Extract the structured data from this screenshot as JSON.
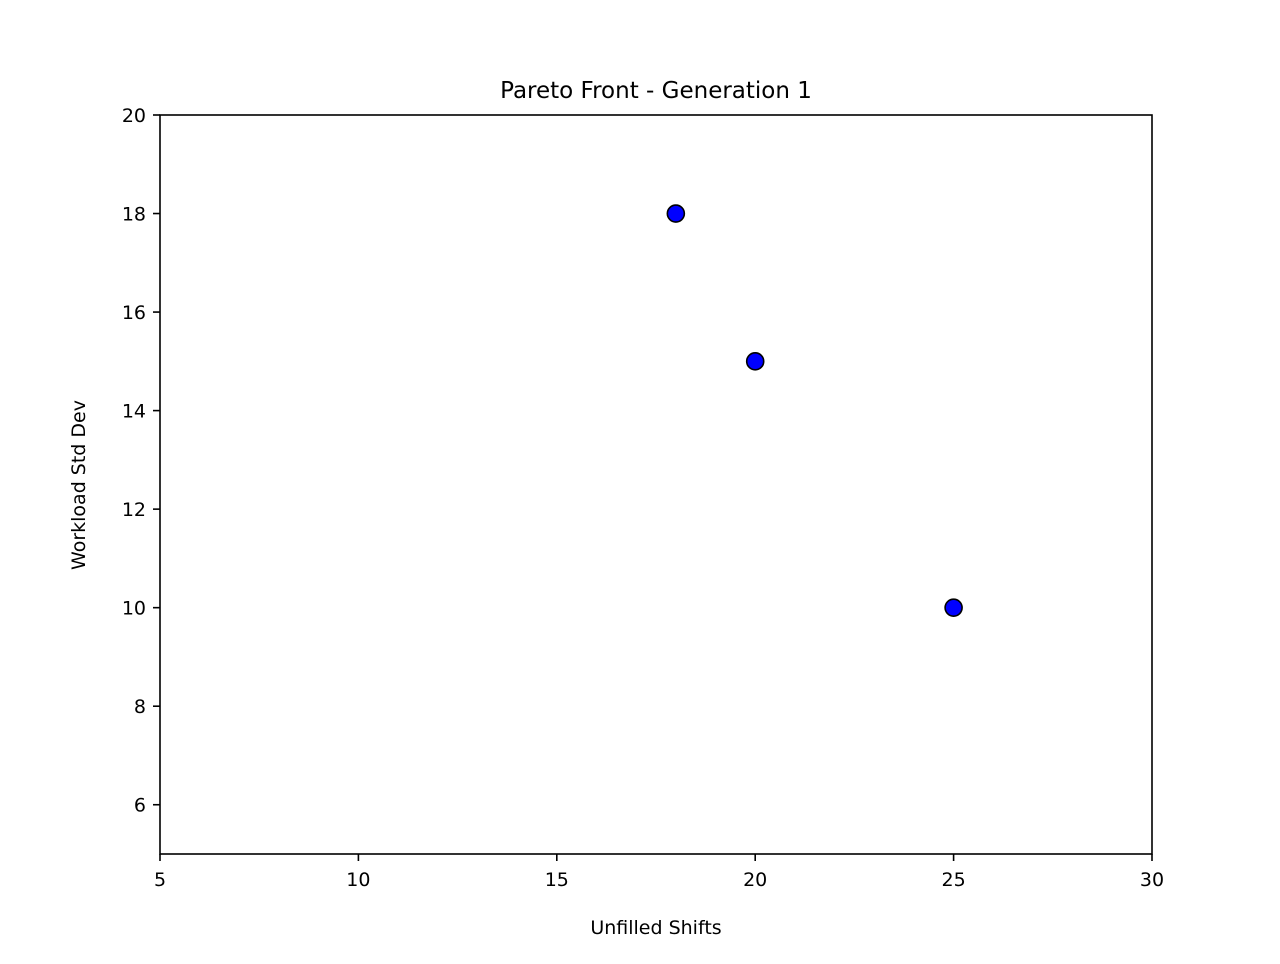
{
  "chart_data": {
    "type": "scatter",
    "title": "Pareto Front - Generation 1",
    "xlabel": "Unfilled Shifts",
    "ylabel": "Workload Std Dev",
    "xlim": [
      5,
      30
    ],
    "ylim": [
      5,
      20
    ],
    "xticks": [
      5,
      10,
      15,
      20,
      25,
      30
    ],
    "yticks": [
      6,
      8,
      10,
      12,
      14,
      16,
      18,
      20
    ],
    "grid": false,
    "legend": "none",
    "marker_fill": "#0000ff",
    "marker_edge": "#000000",
    "points": [
      {
        "x": 18,
        "y": 18
      },
      {
        "x": 20,
        "y": 15
      },
      {
        "x": 25,
        "y": 10
      }
    ]
  }
}
